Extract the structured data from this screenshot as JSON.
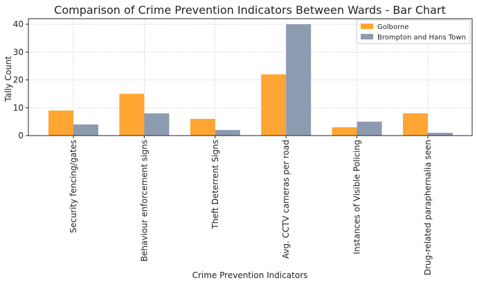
{
  "chart_data": {
    "type": "bar",
    "title": "Comparison of Crime Prevention Indicators Between Wards - Bar Chart",
    "xlabel": "Crime Prevention Indicators",
    "ylabel": "Tally Count",
    "ylim": [
      0,
      42
    ],
    "yticks": [
      0,
      10,
      20,
      30,
      40
    ],
    "grid": true,
    "legend_position": "top-right",
    "categories": [
      "Security fencing/gates",
      "Behaviour enforcement signs",
      "Theft Deterrent Signs",
      "Avg. CCTV cameras per road",
      "Instances of Visible Policing",
      "Drug-related paraphernalia seen"
    ],
    "series": [
      {
        "name": "Golborne",
        "color": "#ffa533",
        "values": [
          9,
          15,
          6,
          22,
          3,
          8
        ]
      },
      {
        "name": "Brompton and Hans Town",
        "color": "#8c9bb0",
        "values": [
          4,
          8,
          2,
          40,
          5,
          1
        ]
      }
    ]
  }
}
